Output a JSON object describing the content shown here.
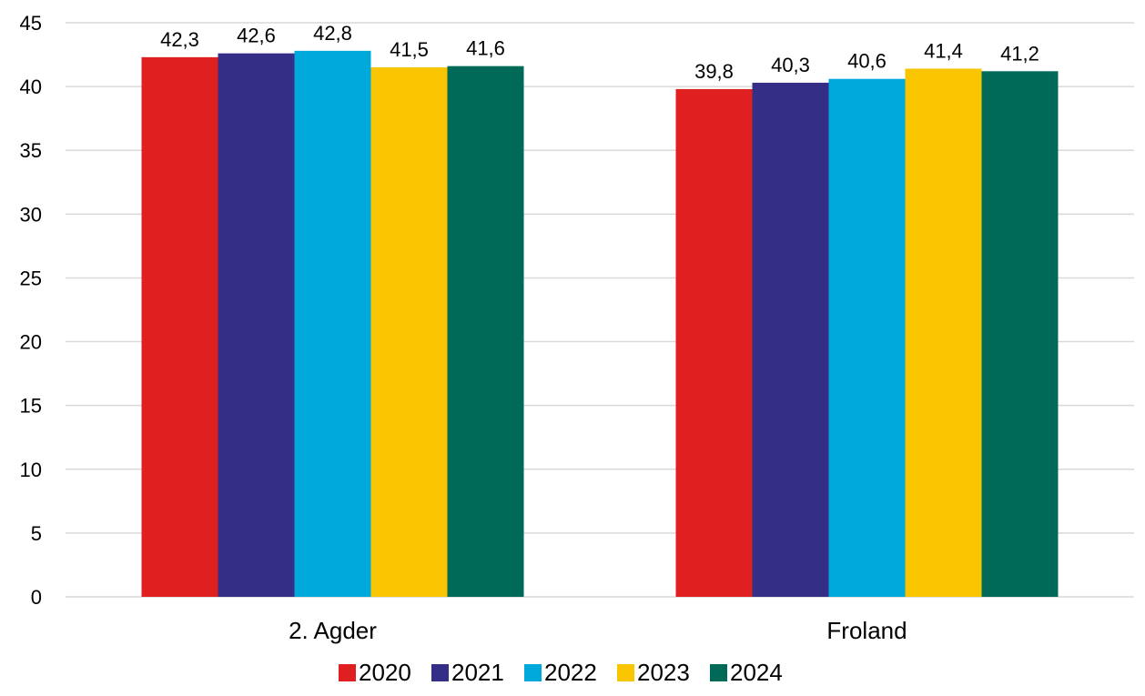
{
  "chart_data": {
    "type": "bar",
    "categories": [
      "2. Agder",
      "Froland"
    ],
    "series": [
      {
        "name": "2020",
        "values": [
          42.3,
          39.8
        ],
        "color": "#e02020"
      },
      {
        "name": "2021",
        "values": [
          42.6,
          40.3
        ],
        "color": "#352e86"
      },
      {
        "name": "2022",
        "values": [
          42.8,
          40.6
        ],
        "color": "#00a9dc"
      },
      {
        "name": "2023",
        "values": [
          41.5,
          41.4
        ],
        "color": "#f8c500"
      },
      {
        "name": "2024",
        "values": [
          41.6,
          41.2
        ],
        "color": "#006a59"
      }
    ],
    "data_labels": [
      [
        "42,3",
        "39,8"
      ],
      [
        "42,6",
        "40,3"
      ],
      [
        "42,8",
        "40,6"
      ],
      [
        "41,5",
        "41,4"
      ],
      [
        "41,6",
        "41,2"
      ]
    ],
    "y_ticks": [
      0,
      5,
      10,
      15,
      20,
      25,
      30,
      35,
      40,
      45
    ],
    "ylim": [
      0,
      45
    ],
    "title": "",
    "xlabel": "",
    "ylabel": "",
    "grid": true,
    "legend_position": "bottom"
  }
}
